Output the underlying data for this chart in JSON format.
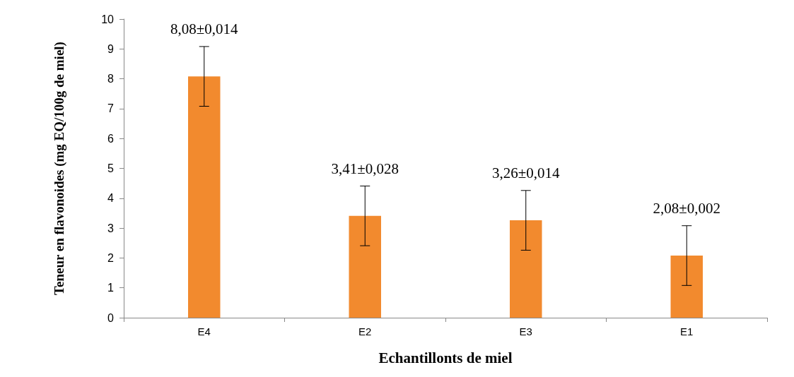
{
  "chart_data": {
    "type": "bar",
    "xlabel": "Echantillonts de miel",
    "ylabel": "Teneur en flavonoides (mg EQ/100g de miel)",
    "categories": [
      "E4",
      "E2",
      "E3",
      "E1"
    ],
    "values": [
      8.08,
      3.41,
      3.26,
      2.08
    ],
    "errors": [
      1,
      1,
      1,
      1
    ],
    "value_labels": [
      "8,08±0,014",
      "3,41±0,028",
      "3,26±0,014",
      "2,08±0,002"
    ],
    "color": "#f28a2e",
    "ylim": [
      0,
      10
    ],
    "yticks": [
      0,
      1,
      2,
      3,
      4,
      5,
      6,
      7,
      8,
      9,
      10
    ],
    "grid": false
  }
}
